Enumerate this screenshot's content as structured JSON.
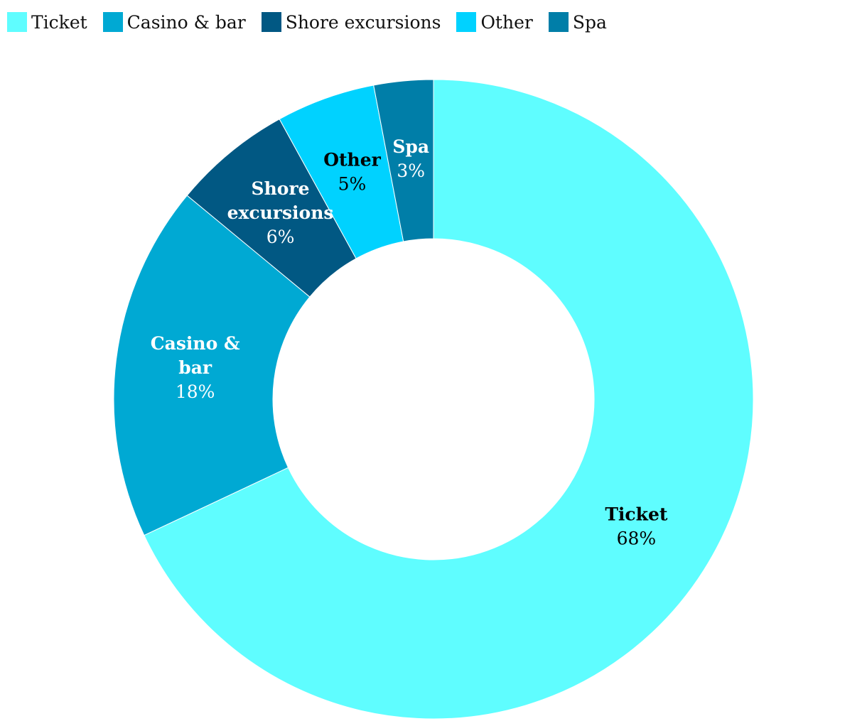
{
  "chart_data": {
    "type": "pie",
    "donut": true,
    "title": "",
    "legend_position": "top-left",
    "slices": [
      {
        "label": "Ticket",
        "value": 68,
        "display": "68%",
        "color": "#5ffdff",
        "label_color": "#000000",
        "label_lines": [
          "Ticket"
        ]
      },
      {
        "label": "Casino & bar",
        "value": 18,
        "display": "18%",
        "color": "#00a9d3",
        "label_color": "#ffffff",
        "label_lines": [
          "Casino &",
          "bar"
        ]
      },
      {
        "label": "Shore excursions",
        "value": 6,
        "display": "6%",
        "color": "#015883",
        "label_color": "#ffffff",
        "label_lines": [
          "Shore",
          "excursions"
        ]
      },
      {
        "label": "Other",
        "value": 5,
        "display": "5%",
        "color": "#00d2ff",
        "label_color": "#000000",
        "label_lines": [
          "Other"
        ]
      },
      {
        "label": "Spa",
        "value": 3,
        "display": "3%",
        "color": "#007ea8",
        "label_color": "#ffffff",
        "label_lines": [
          "Spa"
        ]
      }
    ]
  }
}
